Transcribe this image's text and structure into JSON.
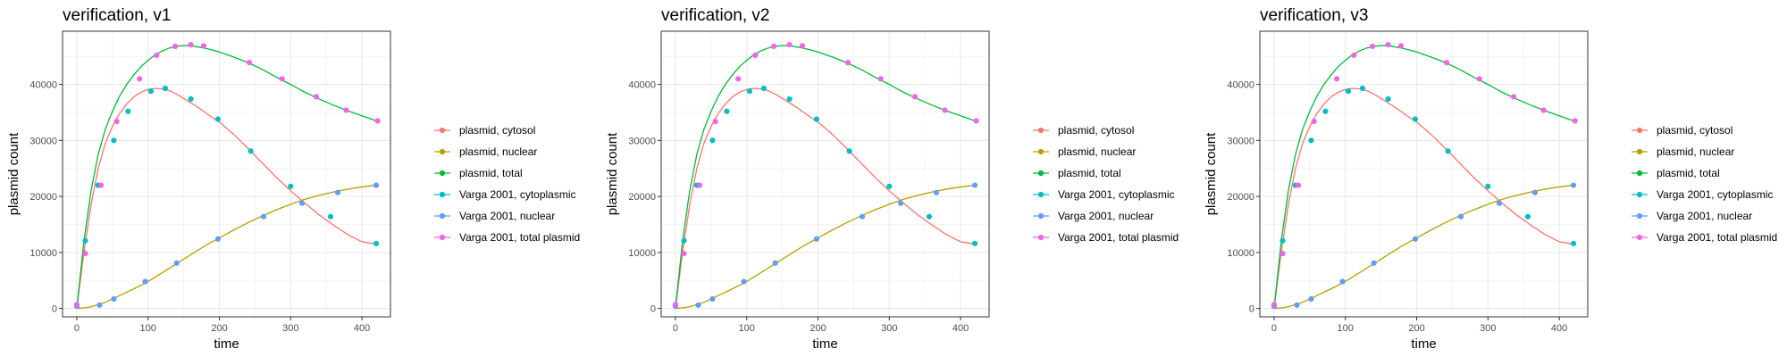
{
  "legend": [
    {
      "label": "plasmid, cytosol",
      "color": "#F8766D"
    },
    {
      "label": "plasmid, nuclear",
      "color": "#B79F00"
    },
    {
      "label": "plasmid, total",
      "color": "#00BA38"
    },
    {
      "label": "Varga 2001, cytoplasmic",
      "color": "#00BFC4"
    },
    {
      "label": "Varga 2001, nuclear",
      "color": "#619CFF"
    },
    {
      "label": "Varga 2001, total plasmid",
      "color": "#F564E3"
    }
  ],
  "chart_data": [
    {
      "type": "line",
      "title": "verification, v1",
      "xlabel": "time",
      "ylabel": "plasmid count",
      "xlim": [
        -20,
        440
      ],
      "ylim": [
        -1500,
        49500
      ],
      "xticks": [
        0,
        100,
        200,
        300,
        400
      ],
      "yticks": [
        0,
        10000,
        20000,
        30000,
        40000
      ],
      "grid": true,
      "legend_position": "right",
      "series": [
        {
          "name": "plasmid, cytosol",
          "kind": "line",
          "color": "#F8766D",
          "x": [
            0,
            10,
            20,
            30,
            40,
            50,
            60,
            70,
            80,
            90,
            100,
            110,
            120,
            130,
            140,
            150,
            160,
            170,
            180,
            190,
            200,
            220,
            240,
            260,
            280,
            300,
            320,
            340,
            360,
            380,
            400,
            420
          ],
          "y": [
            0,
            10000,
            18500,
            25000,
            29500,
            32500,
            34800,
            36500,
            37800,
            38600,
            39100,
            39300,
            39200,
            38900,
            38300,
            37500,
            36700,
            35900,
            35000,
            34100,
            33300,
            31100,
            28600,
            26000,
            23400,
            21000,
            18800,
            16700,
            14900,
            13200,
            11900,
            11500
          ]
        },
        {
          "name": "plasmid, nuclear",
          "kind": "line",
          "color": "#B79F00",
          "x": [
            0,
            10,
            20,
            30,
            40,
            50,
            60,
            80,
            100,
            120,
            140,
            160,
            180,
            200,
            220,
            240,
            260,
            280,
            300,
            320,
            340,
            360,
            380,
            400,
            420
          ],
          "y": [
            0,
            100,
            300,
            700,
            1100,
            1700,
            2300,
            3500,
            4800,
            6400,
            8000,
            9600,
            11200,
            12600,
            14000,
            15300,
            16500,
            17600,
            18600,
            19500,
            20200,
            20800,
            21300,
            21700,
            22000
          ]
        },
        {
          "name": "plasmid, total",
          "kind": "line",
          "color": "#00BA38",
          "x": [
            0,
            10,
            20,
            30,
            40,
            50,
            60,
            70,
            80,
            90,
            100,
            110,
            120,
            130,
            140,
            150,
            160,
            170,
            180,
            190,
            200,
            220,
            240,
            260,
            280,
            300,
            320,
            340,
            360,
            380,
            400,
            420
          ],
          "y": [
            0,
            12000,
            21000,
            27500,
            32000,
            35200,
            37900,
            40000,
            41700,
            43200,
            44300,
            45300,
            46000,
            46500,
            46800,
            46950,
            46900,
            46700,
            46450,
            46150,
            45800,
            44900,
            43900,
            42700,
            41300,
            40000,
            38600,
            37400,
            36300,
            35300,
            34400,
            33500
          ]
        },
        {
          "name": "Varga 2001, cytoplasmic",
          "kind": "points",
          "color": "#00BFC4",
          "x": [
            0,
            12,
            30,
            52,
            72,
            104,
            124,
            160,
            198,
            244,
            300,
            356,
            420
          ],
          "y": [
            600,
            12100,
            22000,
            30000,
            35200,
            38800,
            39300,
            37400,
            33800,
            28100,
            21800,
            16400,
            11600
          ]
        },
        {
          "name": "Varga 2001, nuclear",
          "kind": "points",
          "color": "#619CFF",
          "x": [
            0,
            32,
            52,
            96,
            140,
            198,
            262,
            316,
            366,
            420
          ],
          "y": [
            400,
            600,
            1700,
            4800,
            8100,
            12400,
            16400,
            18800,
            20700,
            22000
          ]
        },
        {
          "name": "Varga 2001, total plasmid",
          "kind": "points",
          "color": "#F564E3",
          "x": [
            0,
            12,
            34,
            56,
            88,
            112,
            138,
            160,
            178,
            242,
            288,
            336,
            378,
            422
          ],
          "y": [
            700,
            9800,
            22000,
            33400,
            41000,
            45200,
            46800,
            47100,
            46900,
            43900,
            41000,
            37800,
            35400,
            33500
          ]
        }
      ]
    },
    {
      "type": "line",
      "title": "verification, v2",
      "xlabel": "time",
      "ylabel": "plasmid count",
      "xlim": [
        -20,
        440
      ],
      "ylim": [
        -1500,
        49500
      ],
      "xticks": [
        0,
        100,
        200,
        300,
        400
      ],
      "yticks": [
        0,
        10000,
        20000,
        30000,
        40000
      ],
      "grid": true,
      "legend_position": "right",
      "series": [
        {
          "name": "plasmid, cytosol",
          "kind": "line",
          "color": "#F8766D",
          "x": [
            0,
            10,
            20,
            30,
            40,
            50,
            60,
            70,
            80,
            90,
            100,
            110,
            120,
            130,
            140,
            150,
            160,
            170,
            180,
            190,
            200,
            220,
            240,
            260,
            280,
            300,
            320,
            340,
            360,
            380,
            400,
            420
          ],
          "y": [
            0,
            10000,
            18500,
            25000,
            29500,
            32500,
            34800,
            36500,
            37800,
            38600,
            39100,
            39300,
            39200,
            38900,
            38300,
            37500,
            36700,
            35900,
            35000,
            34100,
            33300,
            31100,
            28600,
            26000,
            23400,
            21000,
            18800,
            16700,
            14900,
            13200,
            11900,
            11500
          ]
        },
        {
          "name": "plasmid, nuclear",
          "kind": "line",
          "color": "#B79F00",
          "x": [
            0,
            10,
            20,
            30,
            40,
            50,
            60,
            80,
            100,
            120,
            140,
            160,
            180,
            200,
            220,
            240,
            260,
            280,
            300,
            320,
            340,
            360,
            380,
            400,
            420
          ],
          "y": [
            0,
            100,
            300,
            700,
            1100,
            1700,
            2300,
            3500,
            4800,
            6400,
            8000,
            9600,
            11200,
            12600,
            14000,
            15300,
            16500,
            17600,
            18600,
            19500,
            20200,
            20800,
            21300,
            21700,
            22000
          ]
        },
        {
          "name": "plasmid, total",
          "kind": "line",
          "color": "#00BA38",
          "x": [
            0,
            10,
            20,
            30,
            40,
            50,
            60,
            70,
            80,
            90,
            100,
            110,
            120,
            130,
            140,
            150,
            160,
            170,
            180,
            190,
            200,
            220,
            240,
            260,
            280,
            300,
            320,
            340,
            360,
            380,
            400,
            420
          ],
          "y": [
            0,
            12000,
            21000,
            27500,
            32000,
            35200,
            37900,
            40000,
            41700,
            43200,
            44300,
            45300,
            46000,
            46500,
            46800,
            46950,
            46900,
            46700,
            46450,
            46150,
            45800,
            44900,
            43900,
            42700,
            41300,
            40000,
            38600,
            37400,
            36300,
            35300,
            34400,
            33500
          ]
        },
        {
          "name": "Varga 2001, cytoplasmic",
          "kind": "points",
          "color": "#00BFC4",
          "x": [
            0,
            12,
            30,
            52,
            72,
            104,
            124,
            160,
            198,
            244,
            300,
            356,
            420
          ],
          "y": [
            600,
            12100,
            22000,
            30000,
            35200,
            38800,
            39300,
            37400,
            33800,
            28100,
            21800,
            16400,
            11600
          ]
        },
        {
          "name": "Varga 2001, nuclear",
          "kind": "points",
          "color": "#619CFF",
          "x": [
            0,
            32,
            52,
            96,
            140,
            198,
            262,
            316,
            366,
            420
          ],
          "y": [
            400,
            600,
            1700,
            4800,
            8100,
            12400,
            16400,
            18800,
            20700,
            22000
          ]
        },
        {
          "name": "Varga 2001, total plasmid",
          "kind": "points",
          "color": "#F564E3",
          "x": [
            0,
            12,
            34,
            56,
            88,
            112,
            138,
            160,
            178,
            242,
            288,
            336,
            378,
            422
          ],
          "y": [
            700,
            9800,
            22000,
            33400,
            41000,
            45200,
            46800,
            47100,
            46900,
            43900,
            41000,
            37800,
            35400,
            33500
          ]
        }
      ]
    },
    {
      "type": "line",
      "title": "verification, v3",
      "xlabel": "time",
      "ylabel": "plasmid count",
      "xlim": [
        -20,
        440
      ],
      "ylim": [
        -1500,
        49500
      ],
      "xticks": [
        0,
        100,
        200,
        300,
        400
      ],
      "yticks": [
        0,
        10000,
        20000,
        30000,
        40000
      ],
      "grid": true,
      "legend_position": "right",
      "series": [
        {
          "name": "plasmid, cytosol",
          "kind": "line",
          "color": "#F8766D",
          "x": [
            0,
            10,
            20,
            30,
            40,
            50,
            60,
            70,
            80,
            90,
            100,
            110,
            120,
            130,
            140,
            150,
            160,
            170,
            180,
            190,
            200,
            220,
            240,
            260,
            280,
            300,
            320,
            340,
            360,
            380,
            400,
            420
          ],
          "y": [
            0,
            10000,
            18500,
            25000,
            29500,
            32500,
            34800,
            36500,
            37800,
            38600,
            39100,
            39300,
            39200,
            38900,
            38300,
            37500,
            36700,
            35900,
            35000,
            34100,
            33300,
            31100,
            28600,
            26000,
            23400,
            21000,
            18800,
            16700,
            14900,
            13200,
            11900,
            11500
          ]
        },
        {
          "name": "plasmid, nuclear",
          "kind": "line",
          "color": "#B79F00",
          "x": [
            0,
            10,
            20,
            30,
            40,
            50,
            60,
            80,
            100,
            120,
            140,
            160,
            180,
            200,
            220,
            240,
            260,
            280,
            300,
            320,
            340,
            360,
            380,
            400,
            420
          ],
          "y": [
            0,
            100,
            300,
            700,
            1100,
            1700,
            2300,
            3500,
            4800,
            6400,
            8000,
            9600,
            11200,
            12600,
            14000,
            15300,
            16500,
            17600,
            18600,
            19500,
            20200,
            20800,
            21300,
            21700,
            22000
          ]
        },
        {
          "name": "plasmid, total",
          "kind": "line",
          "color": "#00BA38",
          "x": [
            0,
            10,
            20,
            30,
            40,
            50,
            60,
            70,
            80,
            90,
            100,
            110,
            120,
            130,
            140,
            150,
            160,
            170,
            180,
            190,
            200,
            220,
            240,
            260,
            280,
            300,
            320,
            340,
            360,
            380,
            400,
            420
          ],
          "y": [
            0,
            12000,
            21000,
            27500,
            32000,
            35200,
            37900,
            40000,
            41700,
            43200,
            44300,
            45300,
            46000,
            46500,
            46800,
            46950,
            46900,
            46700,
            46450,
            46150,
            45800,
            44900,
            43900,
            42700,
            41300,
            40000,
            38600,
            37400,
            36300,
            35300,
            34400,
            33500
          ]
        },
        {
          "name": "Varga 2001, cytoplasmic",
          "kind": "points",
          "color": "#00BFC4",
          "x": [
            0,
            12,
            30,
            52,
            72,
            104,
            124,
            160,
            198,
            244,
            300,
            356,
            420
          ],
          "y": [
            600,
            12100,
            22000,
            30000,
            35200,
            38800,
            39300,
            37400,
            33800,
            28100,
            21800,
            16400,
            11600
          ]
        },
        {
          "name": "Varga 2001, nuclear",
          "kind": "points",
          "color": "#619CFF",
          "x": [
            0,
            32,
            52,
            96,
            140,
            198,
            262,
            316,
            366,
            420
          ],
          "y": [
            400,
            600,
            1700,
            4800,
            8100,
            12400,
            16400,
            18800,
            20700,
            22000
          ]
        },
        {
          "name": "Varga 2001, total plasmid",
          "kind": "points",
          "color": "#F564E3",
          "x": [
            0,
            12,
            34,
            56,
            88,
            112,
            138,
            160,
            178,
            242,
            288,
            336,
            378,
            422
          ],
          "y": [
            700,
            9800,
            22000,
            33400,
            41000,
            45200,
            46800,
            47100,
            46900,
            43900,
            41000,
            37800,
            35400,
            33500
          ]
        }
      ]
    }
  ]
}
